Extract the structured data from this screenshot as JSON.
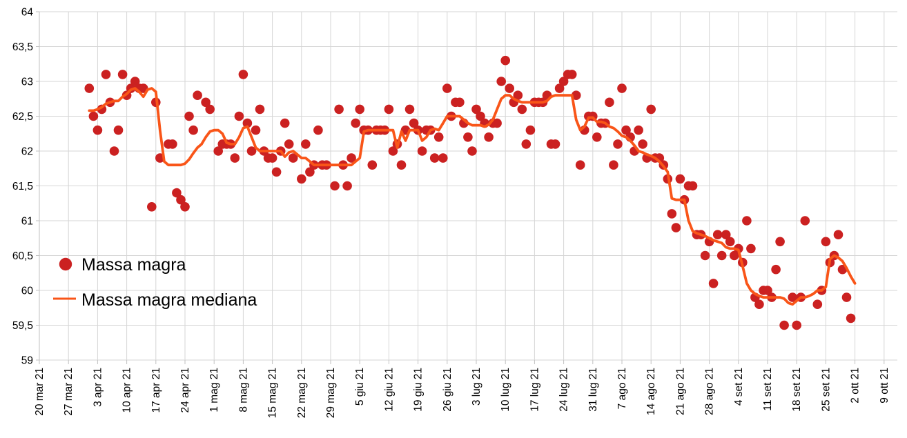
{
  "chart_data": {
    "type": "scatter",
    "title": "",
    "grid": true,
    "legend_position": "middle-left",
    "day_zero_label": "20 mar 21",
    "x_axis": {
      "tick_interval_days": 7,
      "tick_labels": [
        "20 mar 21",
        "27 mar 21",
        "3 apr 21",
        "10 apr 21",
        "17 apr 21",
        "24 apr 21",
        "1 mag 21",
        "8 mag 21",
        "15 mag 21",
        "22 mag 21",
        "29 mag 21",
        "5 giu 21",
        "12 giu 21",
        "19 giu 21",
        "26 giu 21",
        "3 lug 21",
        "10 lug 21",
        "17 lug 21",
        "24 lug 21",
        "31 lug 21",
        "7 ago 21",
        "14 ago 21",
        "21 ago 21",
        "28 ago 21",
        "4 set 21",
        "11 set 21",
        "18 set 21",
        "25 set 21",
        "2 ott 21",
        "9 ott 21"
      ]
    },
    "y_axis": {
      "min": 59,
      "max": 64,
      "step": 0.5,
      "tick_labels": [
        "64",
        "63,5",
        "63",
        "62,5",
        "62",
        "61,5",
        "61",
        "60,5",
        "60",
        "59,5",
        "59"
      ]
    },
    "legend": [
      {
        "label": "Massa magra",
        "marker": "dot"
      },
      {
        "label": "Massa magra mediana",
        "marker": "line"
      }
    ],
    "series": [
      {
        "name": "Massa magra",
        "type": "scatter",
        "points": [
          [
            12,
            62.9
          ],
          [
            13,
            62.5
          ],
          [
            14,
            62.3
          ],
          [
            15,
            62.6
          ],
          [
            16,
            63.1
          ],
          [
            17,
            62.7
          ],
          [
            18,
            62.0
          ],
          [
            19,
            62.3
          ],
          [
            20,
            63.1
          ],
          [
            21,
            62.8
          ],
          [
            22,
            62.9
          ],
          [
            23,
            63.0
          ],
          [
            24,
            62.9
          ],
          [
            25,
            62.9
          ],
          [
            27,
            61.2
          ],
          [
            28,
            62.7
          ],
          [
            29,
            61.9
          ],
          [
            31,
            62.1
          ],
          [
            32,
            62.1
          ],
          [
            33,
            61.4
          ],
          [
            34,
            61.3
          ],
          [
            35,
            61.2
          ],
          [
            36,
            62.5
          ],
          [
            37,
            62.3
          ],
          [
            38,
            62.8
          ],
          [
            40,
            62.7
          ],
          [
            41,
            62.6
          ],
          [
            43,
            62.0
          ],
          [
            44,
            62.1
          ],
          [
            45,
            62.1
          ],
          [
            46,
            62.1
          ],
          [
            47,
            61.9
          ],
          [
            48,
            62.5
          ],
          [
            49,
            63.1
          ],
          [
            50,
            62.4
          ],
          [
            51,
            62.0
          ],
          [
            52,
            62.3
          ],
          [
            53,
            62.6
          ],
          [
            54,
            62.0
          ],
          [
            55,
            61.9
          ],
          [
            56,
            61.9
          ],
          [
            57,
            61.7
          ],
          [
            58,
            62.0
          ],
          [
            59,
            62.4
          ],
          [
            60,
            62.1
          ],
          [
            61,
            61.9
          ],
          [
            63,
            61.6
          ],
          [
            64,
            62.1
          ],
          [
            65,
            61.7
          ],
          [
            66,
            61.8
          ],
          [
            67,
            62.3
          ],
          [
            68,
            61.8
          ],
          [
            69,
            61.8
          ],
          [
            71,
            61.5
          ],
          [
            72,
            62.6
          ],
          [
            73,
            61.8
          ],
          [
            74,
            61.5
          ],
          [
            75,
            61.9
          ],
          [
            76,
            62.4
          ],
          [
            77,
            62.6
          ],
          [
            78,
            62.3
          ],
          [
            79,
            62.3
          ],
          [
            80,
            61.8
          ],
          [
            81,
            62.3
          ],
          [
            82,
            62.3
          ],
          [
            83,
            62.3
          ],
          [
            84,
            62.6
          ],
          [
            85,
            62.0
          ],
          [
            86,
            62.1
          ],
          [
            87,
            61.8
          ],
          [
            88,
            62.3
          ],
          [
            89,
            62.6
          ],
          [
            90,
            62.4
          ],
          [
            91,
            62.3
          ],
          [
            92,
            62.0
          ],
          [
            93,
            62.3
          ],
          [
            94,
            62.3
          ],
          [
            95,
            61.9
          ],
          [
            96,
            62.2
          ],
          [
            97,
            61.9
          ],
          [
            98,
            62.9
          ],
          [
            99,
            62.5
          ],
          [
            100,
            62.7
          ],
          [
            101,
            62.7
          ],
          [
            102,
            62.4
          ],
          [
            103,
            62.2
          ],
          [
            104,
            62.0
          ],
          [
            105,
            62.6
          ],
          [
            106,
            62.5
          ],
          [
            107,
            62.4
          ],
          [
            108,
            62.2
          ],
          [
            109,
            62.4
          ],
          [
            110,
            62.4
          ],
          [
            111,
            63.0
          ],
          [
            112,
            63.3
          ],
          [
            113,
            62.9
          ],
          [
            114,
            62.7
          ],
          [
            115,
            62.8
          ],
          [
            116,
            62.6
          ],
          [
            117,
            62.1
          ],
          [
            118,
            62.3
          ],
          [
            119,
            62.7
          ],
          [
            120,
            62.7
          ],
          [
            121,
            62.7
          ],
          [
            122,
            62.8
          ],
          [
            123,
            62.1
          ],
          [
            124,
            62.1
          ],
          [
            125,
            62.9
          ],
          [
            126,
            63.0
          ],
          [
            127,
            63.1
          ],
          [
            128,
            63.1
          ],
          [
            129,
            62.8
          ],
          [
            130,
            61.8
          ],
          [
            131,
            62.3
          ],
          [
            132,
            62.5
          ],
          [
            133,
            62.5
          ],
          [
            134,
            62.2
          ],
          [
            135,
            62.4
          ],
          [
            136,
            62.4
          ],
          [
            137,
            62.7
          ],
          [
            138,
            61.8
          ],
          [
            139,
            62.1
          ],
          [
            140,
            62.9
          ],
          [
            141,
            62.3
          ],
          [
            142,
            62.2
          ],
          [
            143,
            62.0
          ],
          [
            144,
            62.3
          ],
          [
            145,
            62.1
          ],
          [
            146,
            61.9
          ],
          [
            147,
            62.6
          ],
          [
            148,
            61.9
          ],
          [
            149,
            61.9
          ],
          [
            150,
            61.8
          ],
          [
            151,
            61.6
          ],
          [
            152,
            61.1
          ],
          [
            153,
            60.9
          ],
          [
            154,
            61.6
          ],
          [
            155,
            61.3
          ],
          [
            156,
            61.5
          ],
          [
            157,
            61.5
          ],
          [
            158,
            60.8
          ],
          [
            159,
            60.8
          ],
          [
            160,
            60.5
          ],
          [
            161,
            60.7
          ],
          [
            162,
            60.1
          ],
          [
            163,
            60.8
          ],
          [
            164,
            60.5
          ],
          [
            165,
            60.8
          ],
          [
            166,
            60.7
          ],
          [
            167,
            60.5
          ],
          [
            168,
            60.6
          ],
          [
            169,
            60.4
          ],
          [
            170,
            61.0
          ],
          [
            171,
            60.6
          ],
          [
            172,
            59.9
          ],
          [
            173,
            59.8
          ],
          [
            174,
            60.0
          ],
          [
            175,
            60.0
          ],
          [
            176,
            59.9
          ],
          [
            177,
            60.3
          ],
          [
            178,
            60.7
          ],
          [
            179,
            59.5
          ],
          [
            181,
            59.9
          ],
          [
            182,
            59.5
          ],
          [
            183,
            59.9
          ],
          [
            184,
            61.0
          ],
          [
            187,
            59.8
          ],
          [
            188,
            60.0
          ],
          [
            189,
            60.7
          ],
          [
            190,
            60.4
          ],
          [
            191,
            60.5
          ],
          [
            192,
            60.8
          ],
          [
            193,
            60.3
          ],
          [
            194,
            59.9
          ],
          [
            195,
            59.6
          ]
        ]
      },
      {
        "name": "Massa magra mediana",
        "type": "line",
        "start_day": 12,
        "values": [
          62.58,
          62.58,
          62.6,
          62.63,
          62.68,
          62.7,
          62.72,
          62.72,
          62.78,
          62.82,
          62.88,
          62.9,
          62.85,
          62.78,
          62.88,
          62.9,
          62.85,
          62.3,
          61.85,
          61.8,
          61.8,
          61.8,
          61.8,
          61.82,
          61.88,
          61.97,
          62.05,
          62.1,
          62.2,
          62.28,
          62.3,
          62.3,
          62.25,
          62.12,
          62.1,
          62.1,
          62.2,
          62.33,
          62.35,
          62.2,
          62.05,
          62.0,
          62.0,
          62.0,
          62.0,
          62.0,
          62.0,
          61.92,
          61.98,
          62.0,
          61.95,
          61.9,
          61.9,
          61.85,
          61.8,
          61.8,
          61.8,
          61.8,
          61.8,
          61.8,
          61.8,
          61.8,
          61.8,
          61.8,
          61.85,
          61.9,
          62.28,
          62.3,
          62.3,
          62.3,
          62.3,
          62.3,
          62.3,
          62.3,
          62.05,
          62.28,
          62.15,
          62.3,
          62.3,
          62.3,
          62.15,
          62.2,
          62.3,
          62.32,
          62.3,
          62.4,
          62.5,
          62.5,
          62.5,
          62.5,
          62.45,
          62.4,
          62.37,
          62.37,
          62.37,
          62.35,
          62.38,
          62.45,
          62.6,
          62.75,
          62.8,
          62.8,
          62.75,
          62.72,
          62.7,
          62.7,
          62.7,
          62.7,
          62.7,
          62.7,
          62.72,
          62.78,
          62.8,
          62.8,
          62.8,
          62.8,
          62.8,
          62.45,
          62.3,
          62.35,
          62.48,
          62.48,
          62.42,
          62.42,
          62.4,
          62.35,
          62.33,
          62.28,
          62.22,
          62.2,
          62.15,
          62.08,
          62.0,
          61.98,
          61.95,
          61.93,
          61.9,
          61.85,
          61.78,
          61.7,
          61.32,
          61.3,
          61.3,
          61.3,
          61.0,
          60.85,
          60.82,
          60.8,
          60.78,
          60.75,
          60.72,
          60.7,
          60.68,
          60.62,
          60.6,
          60.6,
          60.58,
          60.35,
          60.1,
          60.0,
          59.95,
          59.92,
          59.9,
          59.9,
          59.9,
          59.9,
          59.9,
          59.88,
          59.82,
          59.8,
          59.85,
          59.9,
          59.9,
          59.92,
          59.95,
          60.0,
          60.0,
          60.05,
          60.45,
          60.5,
          60.47,
          60.42,
          60.32,
          60.2,
          60.1
        ]
      }
    ]
  },
  "colors": {
    "scatter": "#cb2121",
    "median_line": "#f95518",
    "grid": "#d6d6d6",
    "axis": "#c2c2c2",
    "text": "#000000",
    "background": "#ffffff"
  }
}
